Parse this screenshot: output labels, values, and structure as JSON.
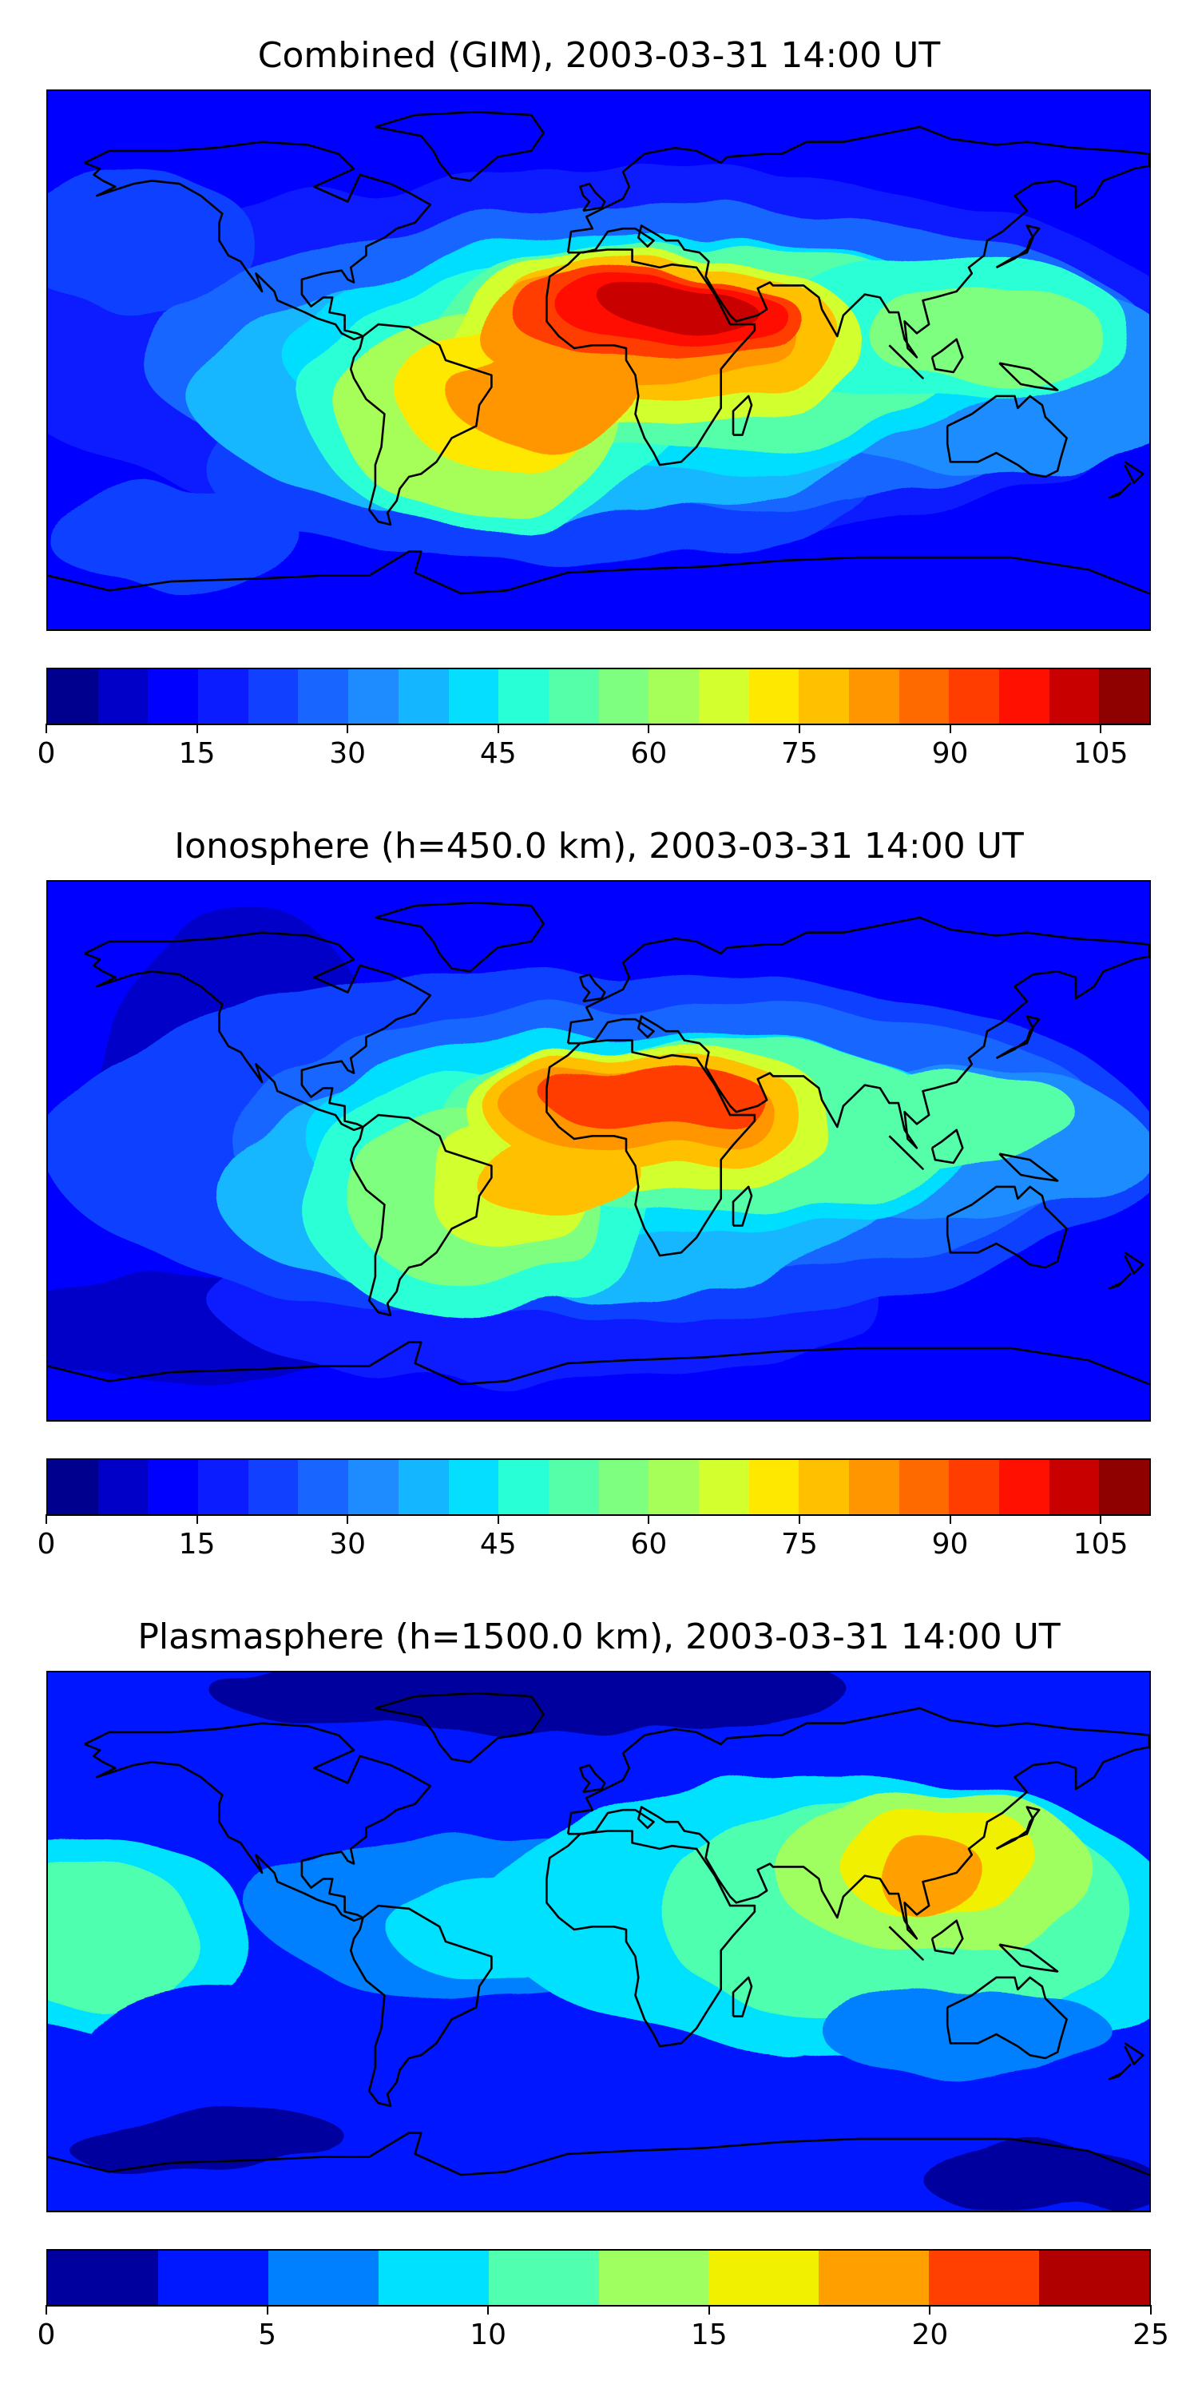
{
  "figure": {
    "type": "stacked-map-panels"
  },
  "palettes": {
    "tec": [
      "#00008f",
      "#0000c8",
      "#0000ff",
      "#0b1cff",
      "#1140ff",
      "#1866ff",
      "#1e8cff",
      "#14b7ff",
      "#06deff",
      "#29ffd6",
      "#55ffaa",
      "#7fff80",
      "#a6ff59",
      "#d2ff2d",
      "#ffe800",
      "#ffc000",
      "#ff9600",
      "#ff6a00",
      "#ff3d00",
      "#ff1000",
      "#c80000",
      "#8f0000"
    ],
    "plasma": [
      "#00009f",
      "#0018ff",
      "#0080ff",
      "#00e0ff",
      "#50ffb0",
      "#a0ff60",
      "#f0f000",
      "#ffa000",
      "#ff4000",
      "#b00000"
    ],
    "continent_outline": "#000000"
  },
  "panels": [
    {
      "title": "Combined (GIM), 2003-03-31 14:00 UT",
      "colorbar": {
        "min": 0,
        "max": 110,
        "levels": 22,
        "ticks": [
          0,
          15,
          30,
          45,
          60,
          75,
          90,
          105
        ],
        "tick_labels": [
          "0",
          "15",
          "30",
          "45",
          "60",
          "75",
          "90",
          "105"
        ]
      },
      "field_features": [
        {
          "region": "North Africa / Sahara",
          "level": 19
        },
        {
          "region": "Central Africa",
          "level": 16
        },
        {
          "region": "Tropical South America",
          "level": 12
        },
        {
          "region": "South Asia / Indian Ocean",
          "level": 10
        },
        {
          "region": "Southeast Asia",
          "level": 8
        },
        {
          "region": "Equatorial Pacific",
          "level": 5
        }
      ]
    },
    {
      "title": "Ionosphere  (h=450.0 km), 2003-03-31 14:00 UT",
      "colorbar": {
        "min": 0,
        "max": 110,
        "levels": 22,
        "ticks": [
          0,
          15,
          30,
          45,
          60,
          75,
          90,
          105
        ],
        "tick_labels": [
          "0",
          "15",
          "30",
          "45",
          "60",
          "75",
          "90",
          "105"
        ]
      },
      "field_features": [
        {
          "region": "North Africa / Sahara",
          "level": 18
        },
        {
          "region": "Central Africa",
          "level": 15
        },
        {
          "region": "Tropical South America",
          "level": 11
        },
        {
          "region": "South Asia / Indian Ocean",
          "level": 9
        },
        {
          "region": "Southeast Asia",
          "level": 7
        },
        {
          "region": "North Pacific",
          "level": 0
        }
      ]
    },
    {
      "title": "Plasmasphere (h=1500.0 km), 2003-03-31 14:00 UT",
      "colorbar": {
        "min": 0,
        "max": 25,
        "levels": 10,
        "ticks": [
          0,
          5,
          10,
          15,
          20,
          25
        ],
        "tick_labels": [
          "0",
          "5",
          "10",
          "15",
          "20",
          "25"
        ]
      },
      "field_features": [
        {
          "region": "China / East Asia",
          "level": 7
        },
        {
          "region": "Southeast Asia",
          "level": 5
        },
        {
          "region": "Eastern Pacific",
          "level": 4
        },
        {
          "region": "Tropical Atlantic",
          "level": 3
        },
        {
          "region": "Southern Ocean",
          "level": 0
        }
      ]
    }
  ]
}
